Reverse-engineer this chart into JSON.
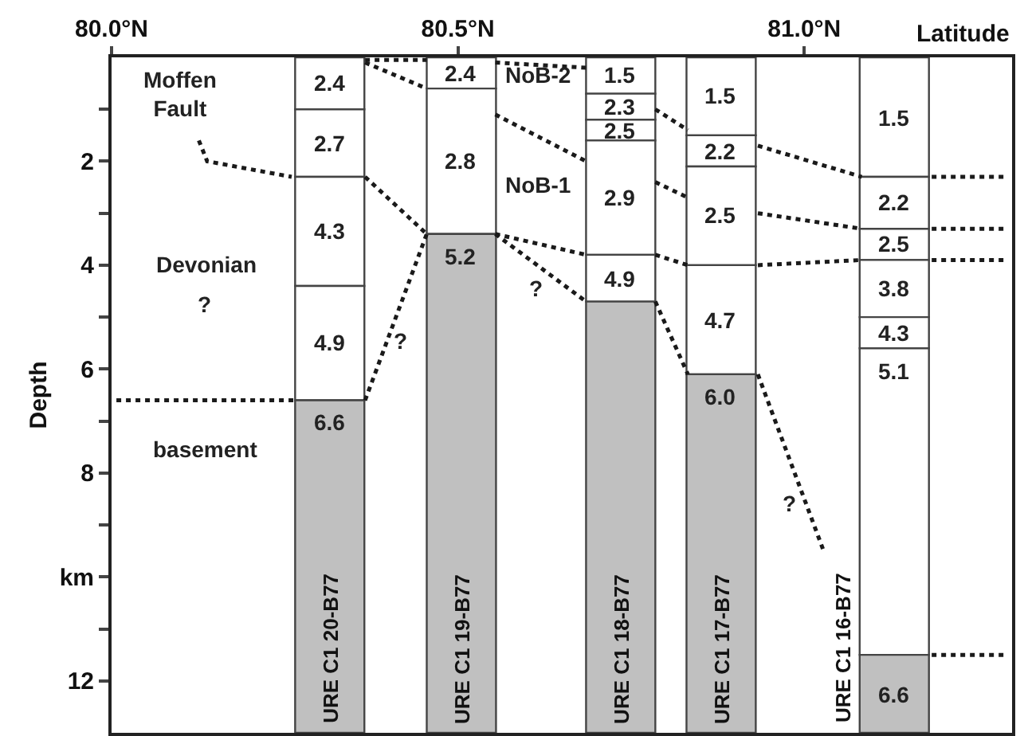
{
  "chart_data": {
    "type": "bar",
    "stacked": true,
    "xlabel": "Latitude",
    "ylabel": "Depth",
    "xlim": [
      80.0,
      81.3
    ],
    "xticks": [
      {
        "value": 80.0,
        "label": "80.0°N"
      },
      {
        "value": 80.5,
        "label": "80.5°N"
      },
      {
        "value": 81.0,
        "label": "81.0°N"
      }
    ],
    "ylim": [
      13,
      0
    ],
    "yticks": [
      {
        "value": 1,
        "label": null
      },
      2,
      {
        "value": 3,
        "label": null
      },
      4,
      {
        "value": 5,
        "label": null
      },
      6,
      {
        "value": 7,
        "label": null
      },
      8,
      {
        "value": 9,
        "label": null
      },
      {
        "value": 10,
        "label": "km"
      },
      {
        "value": 11,
        "label": null
      },
      12
    ],
    "grid": false,
    "line_style": "dotted",
    "x": [
      80.315,
      80.505,
      80.735,
      80.88,
      81.13
    ],
    "series": [
      {
        "values": [
          1.0,
          0.6,
          0.7,
          1.5,
          2.3
        ],
        "colors": [
          "#ffffff",
          "#ffffff",
          "#ffffff",
          "#ffffff",
          "#ffffff"
        ]
      },
      {
        "values": [
          1.3,
          2.8,
          0.5,
          0.6,
          1.0
        ],
        "colors": [
          "#ffffff",
          "#ffffff",
          "#ffffff",
          "#ffffff",
          "#ffffff"
        ]
      },
      {
        "values": [
          2.1,
          9.6,
          0.4,
          1.9,
          0.6
        ],
        "colors": [
          "#ffffff",
          "#c0c0c0",
          "#ffffff",
          "#ffffff",
          "#ffffff"
        ]
      },
      {
        "values": [
          2.2,
          null,
          2.2,
          2.1,
          1.1
        ],
        "colors": [
          "#ffffff",
          null,
          "#ffffff",
          "#ffffff",
          "#ffffff"
        ]
      },
      {
        "values": [
          6.4,
          null,
          0.9,
          6.9,
          0.6
        ],
        "colors": [
          "#c0c0c0",
          null,
          "#ffffff",
          "#c0c0c0",
          "#ffffff"
        ]
      },
      {
        "values": [
          null,
          null,
          8.3,
          null,
          5.9
        ],
        "colors": [
          null,
          null,
          "#c0c0c0",
          null,
          "#ffffff"
        ]
      },
      {
        "values": [
          null,
          null,
          null,
          null,
          1.5
        ],
        "colors": [
          null,
          null,
          null,
          null,
          "#c0c0c0"
        ]
      },
      {
        "type": "line",
        "color": "#1a1a1a",
        "x": [
          80.126,
          80.138,
          80.26
        ],
        "values": [
          1.6,
          2.0,
          2.3
        ]
      },
      {
        "type": "line",
        "color": "#1a1a1a",
        "x": [
          80.366,
          80.455
        ],
        "values": [
          0.05,
          0.05
        ]
      },
      {
        "type": "line",
        "color": "#1a1a1a",
        "x": [
          80.366,
          80.455
        ],
        "values": [
          0.1,
          0.6
        ]
      },
      {
        "type": "line",
        "color": "#1a1a1a",
        "x": [
          80.366,
          80.455
        ],
        "values": [
          2.3,
          3.4
        ]
      },
      {
        "type": "line",
        "color": "#1a1a1a",
        "x": [
          80.366,
          80.455
        ],
        "values": [
          6.6,
          3.4
        ]
      },
      {
        "type": "line",
        "color": "#1a1a1a",
        "x": [
          80.007,
          80.265
        ],
        "values": [
          6.6,
          6.6
        ]
      },
      {
        "type": "line",
        "color": "#1a1a1a",
        "x": [
          80.554,
          80.685
        ],
        "values": [
          0.1,
          0.2
        ]
      },
      {
        "type": "line",
        "color": "#1a1a1a",
        "x": [
          80.554,
          80.685
        ],
        "values": [
          1.1,
          2.0
        ]
      },
      {
        "type": "line",
        "color": "#1a1a1a",
        "x": [
          80.554,
          80.685
        ],
        "values": [
          3.4,
          3.8
        ]
      },
      {
        "type": "line",
        "color": "#1a1a1a",
        "x": [
          80.554,
          80.685
        ],
        "values": [
          3.4,
          4.7
        ]
      },
      {
        "type": "line",
        "color": "#1a1a1a",
        "x": [
          80.785,
          80.832
        ],
        "values": [
          1.0,
          1.4
        ]
      },
      {
        "type": "line",
        "color": "#1a1a1a",
        "x": [
          80.785,
          80.832
        ],
        "values": [
          2.4,
          2.7
        ]
      },
      {
        "type": "line",
        "color": "#1a1a1a",
        "x": [
          80.785,
          80.832
        ],
        "values": [
          3.8,
          4.0
        ]
      },
      {
        "type": "line",
        "color": "#1a1a1a",
        "x": [
          80.785,
          80.832
        ],
        "values": [
          4.7,
          6.1
        ]
      },
      {
        "type": "line",
        "color": "#1a1a1a",
        "x": [
          80.933,
          81.083
        ],
        "values": [
          1.7,
          2.3
        ]
      },
      {
        "type": "line",
        "color": "#1a1a1a",
        "x": [
          80.933,
          81.083
        ],
        "values": [
          3.0,
          3.3
        ]
      },
      {
        "type": "line",
        "color": "#1a1a1a",
        "x": [
          80.933,
          81.083
        ],
        "values": [
          4.0,
          3.9
        ]
      },
      {
        "type": "line",
        "color": "#1a1a1a",
        "x": [
          80.933,
          81.028
        ],
        "values": [
          6.1,
          9.5
        ]
      },
      {
        "type": "line",
        "color": "#1a1a1a",
        "x": [
          81.184,
          81.294
        ],
        "values": [
          2.3,
          2.3
        ]
      },
      {
        "type": "line",
        "color": "#1a1a1a",
        "x": [
          81.184,
          81.294
        ],
        "values": [
          3.3,
          3.3
        ]
      },
      {
        "type": "line",
        "color": "#1a1a1a",
        "x": [
          81.184,
          81.294
        ],
        "values": [
          3.9,
          3.9
        ]
      },
      {
        "type": "line",
        "color": "#1a1a1a",
        "x": [
          81.184,
          81.294
        ],
        "values": [
          11.5,
          11.5
        ]
      }
    ],
    "annotations": [
      "Moffen\nFault",
      "NoB-2",
      "NoB-1",
      "Devonian",
      "?",
      "basement",
      "?",
      "?",
      "?",
      {
        "text": "2.4",
        "x": 80.315,
        "y": 0
      },
      {
        "text": "2.7",
        "x": 80.315,
        "y": 1.0
      },
      {
        "text": "4.3",
        "x": 80.315,
        "y": 2.3
      },
      {
        "text": "4.9",
        "x": 80.315,
        "y": 4.4
      },
      {
        "text": "6.6",
        "x": 80.315,
        "y": 6.6
      },
      {
        "text": "2.4",
        "x": 80.505,
        "y": 0
      },
      {
        "text": "2.8",
        "x": 80.505,
        "y": 0.6
      },
      {
        "text": "5.2",
        "x": 80.505,
        "y": 3.4
      },
      {
        "text": "1.5",
        "x": 80.735,
        "y": 0
      },
      {
        "text": "2.3",
        "x": 80.735,
        "y": 0.7
      },
      {
        "text": "2.5",
        "x": 80.735,
        "y": 1.2
      },
      {
        "text": "2.9",
        "x": 80.735,
        "y": 1.6
      },
      {
        "text": "4.9",
        "x": 80.735,
        "y": 3.8
      },
      {
        "text": "1.5",
        "x": 80.88,
        "y": 0
      },
      {
        "text": "2.2",
        "x": 80.88,
        "y": 1.5
      },
      {
        "text": "2.5",
        "x": 80.88,
        "y": 2.1
      },
      {
        "text": "4.7",
        "x": 80.88,
        "y": 4.0
      },
      {
        "text": "6.0",
        "x": 80.88,
        "y": 6.1
      },
      {
        "text": "1.5",
        "x": 81.13,
        "y": 0
      },
      {
        "text": "2.2",
        "x": 81.13,
        "y": 2.3
      },
      {
        "text": "2.5",
        "x": 81.13,
        "y": 3.3
      },
      {
        "text": "3.8",
        "x": 81.13,
        "y": 3.9
      },
      {
        "text": "4.3",
        "x": 81.13,
        "y": 5.0
      },
      {
        "text": "5.1",
        "x": 81.13,
        "y": 5.6
      },
      {
        "text": "6.6",
        "x": 81.13,
        "y": 11.5
      },
      {
        "text": "URE C1 20-B77",
        "x": 80.315,
        "y": 13
      },
      {
        "text": "URE C1 19-B77",
        "x": 80.505,
        "y": 13
      },
      {
        "text": "URE C1 18-B77",
        "x": 80.735,
        "y": 13
      },
      {
        "text": "URE C1 17-B77",
        "x": 80.88,
        "y": 13
      },
      {
        "text": "URE C1 16-B77",
        "x": 81.13,
        "y": 13
      }
    ]
  }
}
